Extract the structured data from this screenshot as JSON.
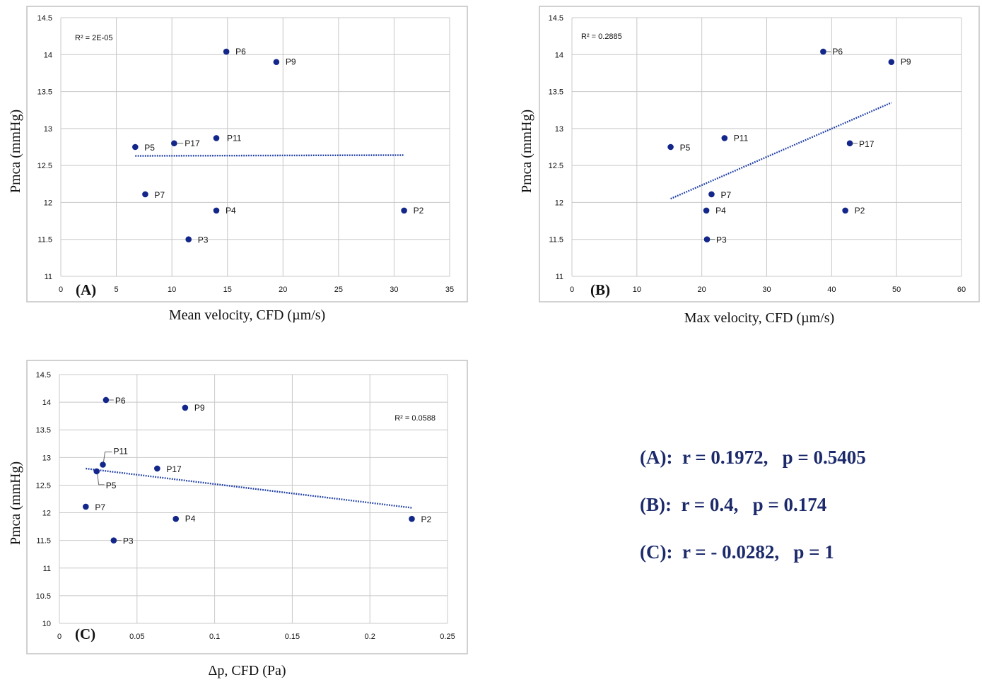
{
  "colors": {
    "point": "#13278a",
    "trend": "#1f3fa6",
    "grid": "#c8c8c8",
    "frame": "#c2c2c2",
    "text": "#111111",
    "stats": "#1c2a6b"
  },
  "chart_data": [
    {
      "type": "scatter",
      "panel_label": "(A)",
      "xlabel": "Mean velocity, CFD (µm/s)",
      "ylabel": "Pmca (mmHg)",
      "xlim": [
        0,
        35
      ],
      "ylim": [
        11,
        14.5
      ],
      "xticks": [
        "0",
        "5",
        "10",
        "15",
        "20",
        "25",
        "30",
        "35"
      ],
      "yticks": [
        "11",
        "11.5",
        "12",
        "12.5",
        "13",
        "13.5",
        "14",
        "14.5"
      ],
      "grid": true,
      "r2_label": "R² = 2E-05",
      "points": [
        {
          "label": "P6",
          "x": 14.9,
          "y": 14.04
        },
        {
          "label": "P9",
          "x": 19.4,
          "y": 13.9
        },
        {
          "label": "P11",
          "x": 14.0,
          "y": 12.87
        },
        {
          "label": "P17",
          "x": 10.2,
          "y": 12.8
        },
        {
          "label": "P5",
          "x": 6.7,
          "y": 12.75
        },
        {
          "label": "P7",
          "x": 7.6,
          "y": 12.11
        },
        {
          "label": "P4",
          "x": 14.0,
          "y": 11.89
        },
        {
          "label": "P2",
          "x": 30.9,
          "y": 11.89
        },
        {
          "label": "P3",
          "x": 11.5,
          "y": 11.5
        }
      ],
      "trendline": {
        "x": [
          6.7,
          30.9
        ],
        "y": [
          12.63,
          12.64
        ]
      }
    },
    {
      "type": "scatter",
      "panel_label": "(B)",
      "xlabel": "Max velocity, CFD (µm/s)",
      "ylabel": "Pmca (mmHg)",
      "xlim": [
        0,
        60
      ],
      "ylim": [
        11,
        14.5
      ],
      "xticks": [
        "0",
        "10",
        "20",
        "30",
        "40",
        "50",
        "60"
      ],
      "yticks": [
        "11",
        "11.5",
        "12",
        "12.5",
        "13",
        "13.5",
        "14",
        "14.5"
      ],
      "grid": true,
      "r2_label": "R² = 0.2885",
      "points": [
        {
          "label": "P6",
          "x": 38.7,
          "y": 14.04
        },
        {
          "label": "P9",
          "x": 49.2,
          "y": 13.9
        },
        {
          "label": "P11",
          "x": 23.5,
          "y": 12.87
        },
        {
          "label": "P17",
          "x": 42.8,
          "y": 12.8
        },
        {
          "label": "P5",
          "x": 15.2,
          "y": 12.75
        },
        {
          "label": "P7",
          "x": 21.5,
          "y": 12.11
        },
        {
          "label": "P4",
          "x": 20.7,
          "y": 11.89
        },
        {
          "label": "P2",
          "x": 42.1,
          "y": 11.89
        },
        {
          "label": "P3",
          "x": 20.8,
          "y": 11.5
        }
      ],
      "trendline": {
        "x": [
          15.2,
          49.2
        ],
        "y": [
          12.05,
          13.35
        ]
      }
    },
    {
      "type": "scatter",
      "panel_label": "(C)",
      "xlabel": "Δp, CFD (Pa)",
      "ylabel": "Pmca (mmHg)",
      "xlim": [
        0,
        0.25
      ],
      "ylim": [
        10,
        14.5
      ],
      "xticks": [
        "0",
        "0.05",
        "0.1",
        "0.15",
        "0.2",
        "0.25"
      ],
      "yticks": [
        "10",
        "10.5",
        "11",
        "11.5",
        "12",
        "12.5",
        "13",
        "13.5",
        "14",
        "14.5"
      ],
      "grid": true,
      "r2_label": "R² = 0.0588",
      "points": [
        {
          "label": "P6",
          "x": 0.03,
          "y": 14.04
        },
        {
          "label": "P9",
          "x": 0.081,
          "y": 13.9
        },
        {
          "label": "P11",
          "x": 0.028,
          "y": 12.87
        },
        {
          "label": "P17",
          "x": 0.063,
          "y": 12.8
        },
        {
          "label": "P5",
          "x": 0.024,
          "y": 12.75
        },
        {
          "label": "P7",
          "x": 0.017,
          "y": 12.11
        },
        {
          "label": "P4",
          "x": 0.075,
          "y": 11.89
        },
        {
          "label": "P2",
          "x": 0.227,
          "y": 11.89
        },
        {
          "label": "P3",
          "x": 0.035,
          "y": 11.5
        }
      ],
      "trendline": {
        "x": [
          0.017,
          0.227
        ],
        "y": [
          12.8,
          12.09
        ]
      }
    }
  ],
  "stats": [
    {
      "panel": "(A):",
      "r": "r = 0.1972,",
      "p": "p = 0.5405"
    },
    {
      "panel": "(B):",
      "r": "r = 0.4,",
      "p": "p = 0.174"
    },
    {
      "panel": "(C):",
      "r": "r = - 0.0282,",
      "p": "p = 1"
    }
  ]
}
